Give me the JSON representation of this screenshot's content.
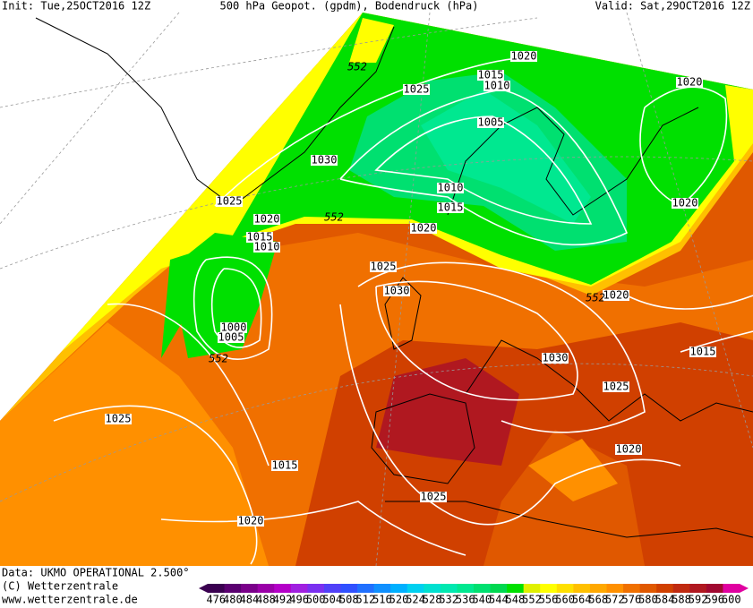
{
  "header": {
    "init": "Init: Tue,25OCT2016 12Z",
    "title": "500 hPa Geopot. (gpdm), Bodendruck (hPa)",
    "valid": "Valid: Sat,29OCT2016 12Z"
  },
  "isobar_labels": [
    "1020",
    "1020",
    "1015",
    "1010",
    "1025",
    "1005",
    "1030",
    "1025",
    "1010",
    "1015",
    "1020",
    "1020",
    "1020",
    "1015",
    "1010",
    "1025",
    "1030",
    "1020",
    "1000",
    "1005",
    "1015",
    "1030",
    "1025",
    "1025",
    "1015",
    "1020",
    "1025",
    "1020"
  ],
  "geopotential_labels": [
    "552",
    "552",
    "552",
    "552"
  ],
  "footer": {
    "data": "Data: UKMO OPERATIONAL 2.500°",
    "copyright": "(C) Wetterzentrale",
    "url": "www.wetterzentrale.de"
  },
  "color_scale": {
    "values": [
      476,
      480,
      484,
      488,
      492,
      496,
      500,
      504,
      508,
      512,
      516,
      520,
      524,
      528,
      532,
      536,
      540,
      544,
      548,
      552,
      556,
      560,
      564,
      568,
      572,
      576,
      580,
      584,
      588,
      592,
      596,
      600
    ],
    "colors": [
      "#3a0050",
      "#5a0070",
      "#7a008a",
      "#9a00a8",
      "#b400c8",
      "#a020e0",
      "#7a30f0",
      "#5040f8",
      "#3050ff",
      "#2070ff",
      "#1090ff",
      "#00b0ff",
      "#00d0f0",
      "#00e0d0",
      "#00e8b0",
      "#00e890",
      "#00e070",
      "#00d850",
      "#00e000",
      "#e0f000",
      "#ffff00",
      "#ffe000",
      "#ffc000",
      "#ffa800",
      "#ff9000",
      "#f07000",
      "#e05800",
      "#d04000",
      "#c02a10",
      "#b01820",
      "#a00830",
      "#e000a0"
    ]
  }
}
